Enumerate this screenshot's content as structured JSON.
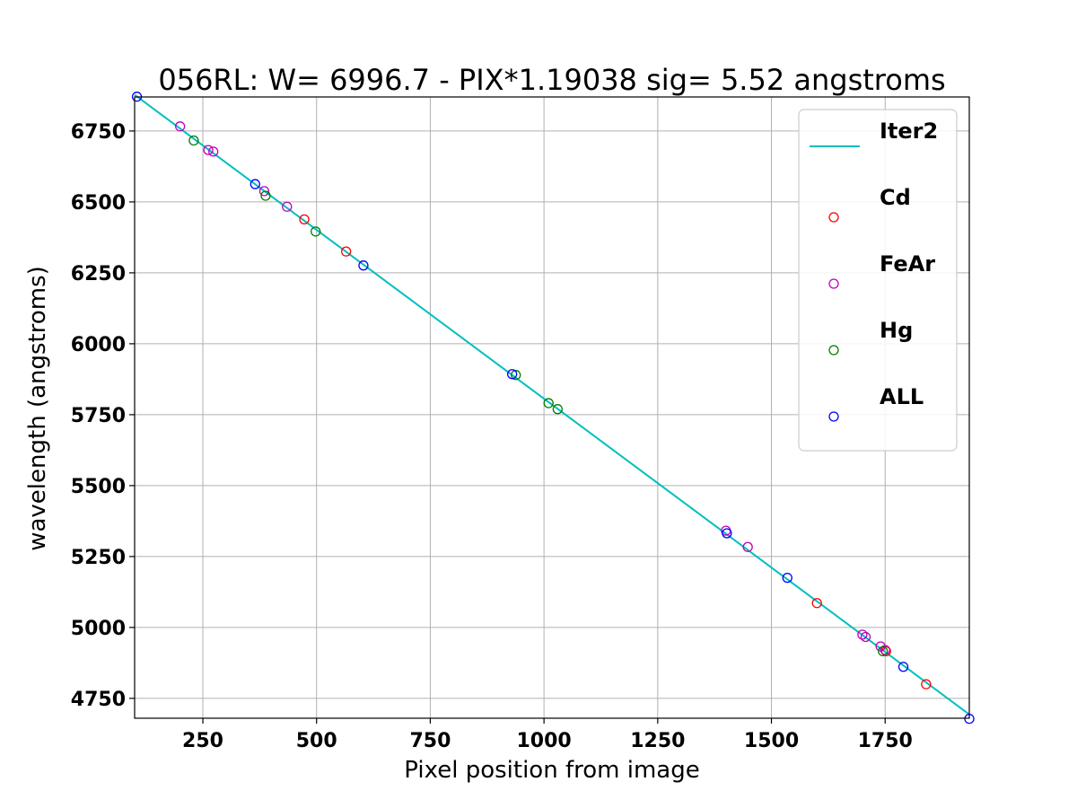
{
  "chart_data": {
    "type": "scatter",
    "title": "056RL: W= 6996.7 - PIX*1.19038  sig=  5.52 angstroms",
    "xlabel": "Pixel position from image",
    "ylabel": "wavelength (angstroms)",
    "xlim": [
      100,
      1935
    ],
    "ylim": [
      4680,
      6870
    ],
    "xticks": [
      250,
      500,
      750,
      1000,
      1250,
      1500,
      1750
    ],
    "yticks": [
      4750,
      5000,
      5250,
      5500,
      5750,
      6000,
      6250,
      6500,
      6750
    ],
    "grid": true,
    "legend_position": "top-right",
    "fit_line": {
      "name": "Iter2",
      "color": "#00bfbf",
      "intercept": 6996.7,
      "slope": -1.19038
    },
    "series": [
      {
        "name": "Cd",
        "color": "#ff0000",
        "marker": "open-circle",
        "x": [
          473,
          565,
          1600,
          1752,
          1840
        ],
        "y": [
          6438.5,
          6325.2,
          5085.8,
          4916.1,
          4799.9
        ]
      },
      {
        "name": "FeAr",
        "color": "#bf00bf",
        "marker": "open-circle",
        "x": [
          200,
          262,
          273,
          385,
          435,
          1400,
          1448,
          1700,
          1707,
          1740,
          1750
        ],
        "y": [
          6766.2,
          6683.0,
          6677.3,
          6538.1,
          6483.1,
          5341.1,
          5283.6,
          4974.8,
          4966.5,
          4933.2,
          4920.5
        ]
      },
      {
        "name": "Hg",
        "color": "#008000",
        "marker": "open-circle",
        "x": [
          230,
          388,
          498,
          938,
          1010,
          1030,
          1745
        ],
        "y": [
          6716.4,
          6521.9,
          6395.6,
          5889.9,
          5790.7,
          5769.6,
          4916.1
        ]
      },
      {
        "name": "ALL",
        "color": "#0000ff",
        "marker": "open-circle",
        "x": [
          105,
          365,
          603,
          930,
          1402,
          1535,
          1790,
          1935
        ],
        "y": [
          6871.0,
          6562.8,
          6276.0,
          5893.0,
          5332.0,
          5175.0,
          4861.3,
          4678.0
        ]
      }
    ]
  }
}
